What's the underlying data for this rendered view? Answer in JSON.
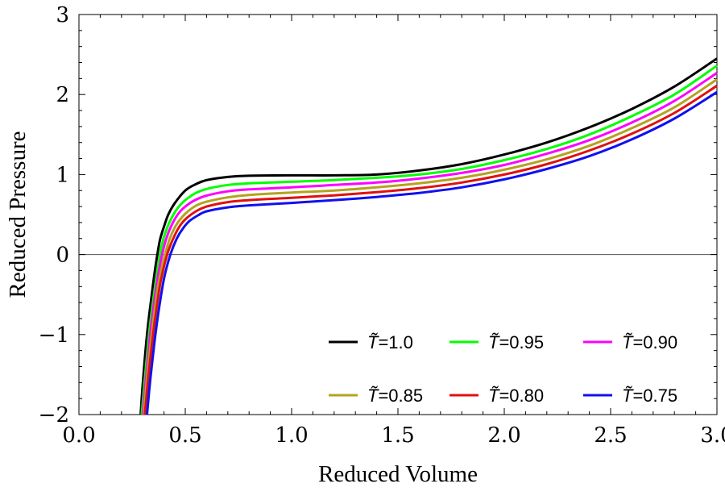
{
  "chart_data": {
    "type": "line",
    "title": "",
    "xlabel": "Reduced Volume",
    "ylabel": "Reduced Pressure",
    "xlim": [
      0,
      3
    ],
    "ylim": [
      -2,
      3
    ],
    "xticks": [
      "0.0",
      "0.5",
      "1.0",
      "1.5",
      "2.0",
      "2.5",
      "3.0"
    ],
    "yticks": [
      "−2",
      "−1",
      "0",
      "1",
      "2",
      "3"
    ],
    "grid": false,
    "legend_position": "bottom-right",
    "legend_symbol": "T̃",
    "series": [
      {
        "name": "=1.0",
        "color": "#000000",
        "points": [
          [
            0.29,
            -2.0
          ],
          [
            0.3,
            -1.62
          ],
          [
            0.32,
            -1.0
          ],
          [
            0.34,
            -0.55
          ],
          [
            0.36,
            -0.15
          ],
          [
            0.38,
            0.17
          ],
          [
            0.4,
            0.35
          ],
          [
            0.42,
            0.5
          ],
          [
            0.45,
            0.64
          ],
          [
            0.5,
            0.8
          ],
          [
            0.55,
            0.88
          ],
          [
            0.6,
            0.93
          ],
          [
            0.7,
            0.97
          ],
          [
            0.8,
            0.985
          ],
          [
            1.0,
            0.99
          ],
          [
            1.2,
            0.99
          ],
          [
            1.4,
            1.0
          ],
          [
            1.6,
            1.05
          ],
          [
            1.8,
            1.13
          ],
          [
            2.0,
            1.25
          ],
          [
            2.2,
            1.4
          ],
          [
            2.4,
            1.59
          ],
          [
            2.6,
            1.82
          ],
          [
            2.8,
            2.1
          ],
          [
            3.0,
            2.45
          ]
        ]
      },
      {
        "name": "=0.95",
        "color": "#00ff00",
        "points": [
          [
            0.295,
            -2.0
          ],
          [
            0.31,
            -1.55
          ],
          [
            0.33,
            -0.98
          ],
          [
            0.35,
            -0.55
          ],
          [
            0.37,
            -0.18
          ],
          [
            0.39,
            0.12
          ],
          [
            0.41,
            0.3
          ],
          [
            0.44,
            0.48
          ],
          [
            0.47,
            0.6
          ],
          [
            0.5,
            0.68
          ],
          [
            0.55,
            0.77
          ],
          [
            0.6,
            0.82
          ],
          [
            0.7,
            0.87
          ],
          [
            0.8,
            0.89
          ],
          [
            1.0,
            0.91
          ],
          [
            1.2,
            0.93
          ],
          [
            1.4,
            0.96
          ],
          [
            1.6,
            1.0
          ],
          [
            1.8,
            1.07
          ],
          [
            2.0,
            1.18
          ],
          [
            2.2,
            1.32
          ],
          [
            2.4,
            1.5
          ],
          [
            2.6,
            1.73
          ],
          [
            2.8,
            2.0
          ],
          [
            3.0,
            2.36
          ]
        ]
      },
      {
        "name": "=0.90",
        "color": "#ff00ff",
        "points": [
          [
            0.3,
            -2.0
          ],
          [
            0.315,
            -1.55
          ],
          [
            0.335,
            -1.0
          ],
          [
            0.355,
            -0.57
          ],
          [
            0.375,
            -0.22
          ],
          [
            0.4,
            0.1
          ],
          [
            0.42,
            0.27
          ],
          [
            0.45,
            0.44
          ],
          [
            0.48,
            0.55
          ],
          [
            0.52,
            0.64
          ],
          [
            0.57,
            0.71
          ],
          [
            0.62,
            0.75
          ],
          [
            0.7,
            0.79
          ],
          [
            0.8,
            0.815
          ],
          [
            1.0,
            0.84
          ],
          [
            1.2,
            0.87
          ],
          [
            1.4,
            0.9
          ],
          [
            1.6,
            0.95
          ],
          [
            1.8,
            1.02
          ],
          [
            2.0,
            1.12
          ],
          [
            2.2,
            1.26
          ],
          [
            2.4,
            1.43
          ],
          [
            2.6,
            1.65
          ],
          [
            2.8,
            1.92
          ],
          [
            3.0,
            2.27
          ]
        ]
      },
      {
        "name": "=0.85",
        "color": "#b3a31f",
        "points": [
          [
            0.305,
            -2.0
          ],
          [
            0.32,
            -1.55
          ],
          [
            0.34,
            -1.05
          ],
          [
            0.36,
            -0.62
          ],
          [
            0.38,
            -0.28
          ],
          [
            0.41,
            0.05
          ],
          [
            0.43,
            0.22
          ],
          [
            0.46,
            0.38
          ],
          [
            0.5,
            0.51
          ],
          [
            0.55,
            0.61
          ],
          [
            0.6,
            0.66
          ],
          [
            0.7,
            0.715
          ],
          [
            0.8,
            0.745
          ],
          [
            1.0,
            0.775
          ],
          [
            1.2,
            0.8
          ],
          [
            1.4,
            0.84
          ],
          [
            1.6,
            0.89
          ],
          [
            1.8,
            0.96
          ],
          [
            2.0,
            1.06
          ],
          [
            2.2,
            1.19
          ],
          [
            2.4,
            1.36
          ],
          [
            2.6,
            1.58
          ],
          [
            2.8,
            1.84
          ],
          [
            3.0,
            2.19
          ]
        ]
      },
      {
        "name": "=0.80",
        "color": "#e01010",
        "points": [
          [
            0.31,
            -2.0
          ],
          [
            0.325,
            -1.57
          ],
          [
            0.345,
            -1.08
          ],
          [
            0.365,
            -0.67
          ],
          [
            0.385,
            -0.33
          ],
          [
            0.415,
            0.0
          ],
          [
            0.44,
            0.18
          ],
          [
            0.47,
            0.34
          ],
          [
            0.5,
            0.44
          ],
          [
            0.55,
            0.54
          ],
          [
            0.6,
            0.6
          ],
          [
            0.7,
            0.655
          ],
          [
            0.8,
            0.68
          ],
          [
            1.0,
            0.71
          ],
          [
            1.2,
            0.74
          ],
          [
            1.4,
            0.78
          ],
          [
            1.6,
            0.83
          ],
          [
            1.8,
            0.9
          ],
          [
            2.0,
            1.0
          ],
          [
            2.2,
            1.13
          ],
          [
            2.4,
            1.3
          ],
          [
            2.6,
            1.51
          ],
          [
            2.8,
            1.77
          ],
          [
            3.0,
            2.11
          ]
        ]
      },
      {
        "name": "=0.75",
        "color": "#1010f0",
        "points": [
          [
            0.32,
            -2.0
          ],
          [
            0.335,
            -1.58
          ],
          [
            0.355,
            -1.1
          ],
          [
            0.375,
            -0.7
          ],
          [
            0.4,
            -0.3
          ],
          [
            0.43,
            0.0
          ],
          [
            0.46,
            0.2
          ],
          [
            0.49,
            0.33
          ],
          [
            0.52,
            0.42
          ],
          [
            0.56,
            0.49
          ],
          [
            0.6,
            0.54
          ],
          [
            0.7,
            0.59
          ],
          [
            0.8,
            0.615
          ],
          [
            1.0,
            0.645
          ],
          [
            1.2,
            0.68
          ],
          [
            1.4,
            0.72
          ],
          [
            1.6,
            0.77
          ],
          [
            1.8,
            0.84
          ],
          [
            2.0,
            0.94
          ],
          [
            2.2,
            1.07
          ],
          [
            2.4,
            1.23
          ],
          [
            2.6,
            1.44
          ],
          [
            2.8,
            1.7
          ],
          [
            3.0,
            2.03
          ]
        ]
      }
    ]
  }
}
